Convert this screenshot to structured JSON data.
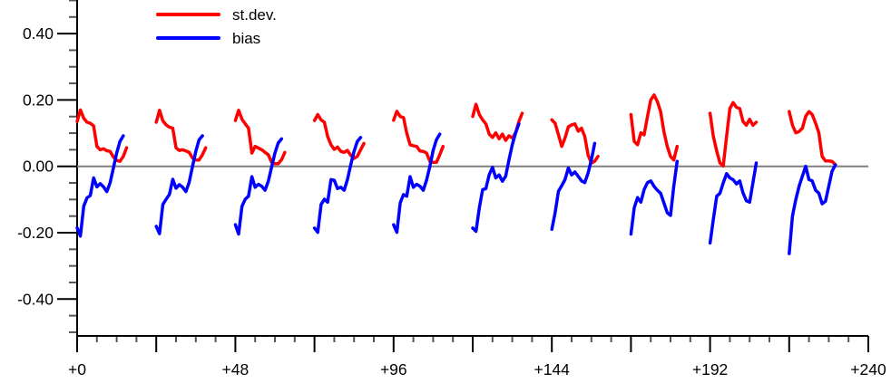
{
  "chart_data": {
    "type": "line",
    "title": "",
    "x_axis": {
      "min": 0,
      "max": 240,
      "minor_tick_step": 6,
      "major_tick_step": 24,
      "tick_labels": [
        {
          "value": 0,
          "text": "+0"
        },
        {
          "value": 48,
          "text": "+48"
        },
        {
          "value": 96,
          "text": "+96"
        },
        {
          "value": 144,
          "text": "+144"
        },
        {
          "value": 192,
          "text": "+192"
        },
        {
          "value": 240,
          "text": "+240"
        }
      ]
    },
    "y_axis": {
      "min": -0.51,
      "max": 0.5,
      "minor_tick_step": 0.05,
      "major_tick_step": 0.2,
      "tick_labels": [
        {
          "value": 0.4,
          "text": "0.40"
        },
        {
          "value": 0.2,
          "text": "0.20"
        },
        {
          "value": 0.0,
          "text": "0.00"
        },
        {
          "value": -0.2,
          "text": "-0.20"
        },
        {
          "value": -0.4,
          "text": "-0.40"
        }
      ]
    },
    "zero_line": {
      "value": 0.0,
      "color": "#7f7f7f"
    },
    "legend": [
      {
        "label": "st.dev.",
        "color": "#ff0000"
      },
      {
        "label": "bias",
        "color": "#0000ff"
      }
    ],
    "series": [
      {
        "name": "st.dev.",
        "color": "#ff0000",
        "segments": [
          {
            "start": 0,
            "step": 1,
            "values": [
              0.135,
              0.17,
              0.145,
              0.133,
              0.13,
              0.122,
              0.06,
              0.05,
              0.053,
              0.047,
              0.045,
              0.028,
              0.018,
              0.015,
              0.03,
              0.056
            ]
          },
          {
            "start": 24,
            "step": 1,
            "values": [
              0.133,
              0.169,
              0.137,
              0.125,
              0.118,
              0.115,
              0.056,
              0.048,
              0.05,
              0.046,
              0.042,
              0.025,
              0.019,
              0.019,
              0.035,
              0.056
            ]
          },
          {
            "start": 48,
            "step": 1,
            "values": [
              0.138,
              0.169,
              0.142,
              0.128,
              0.115,
              0.04,
              0.06,
              0.055,
              0.05,
              0.042,
              0.035,
              0.012,
              0.008,
              0.008,
              0.02,
              0.042
            ]
          },
          {
            "start": 72,
            "step": 1,
            "values": [
              0.138,
              0.156,
              0.14,
              0.133,
              0.09,
              0.065,
              0.051,
              0.058,
              0.045,
              0.042,
              0.048,
              0.033,
              0.024,
              0.03,
              0.05,
              0.069
            ]
          },
          {
            "start": 96,
            "step": 1,
            "values": [
              0.139,
              0.166,
              0.15,
              0.147,
              0.1,
              0.065,
              0.062,
              0.06,
              0.046,
              0.045,
              0.04,
              0.015,
              0.012,
              0.012,
              0.035,
              0.06
            ]
          },
          {
            "start": 120,
            "step": 1,
            "values": [
              0.15,
              0.187,
              0.156,
              0.14,
              0.128,
              0.097,
              0.087,
              0.101,
              0.083,
              0.097,
              0.078,
              0.092,
              0.085,
              0.101,
              0.135,
              0.16
            ]
          },
          {
            "start": 144,
            "step": 1,
            "values": [
              0.14,
              0.13,
              0.095,
              0.06,
              0.085,
              0.119,
              0.125,
              0.128,
              0.106,
              0.115,
              0.09,
              0.033,
              0.01,
              0.015,
              0.03
            ]
          },
          {
            "start": 168,
            "step": 1,
            "values": [
              0.156,
              0.075,
              0.065,
              0.101,
              0.095,
              0.15,
              0.2,
              0.215,
              0.195,
              0.165,
              0.105,
              0.06,
              0.03,
              0.019,
              0.06
            ]
          },
          {
            "start": 192,
            "step": 1,
            "values": [
              0.16,
              0.09,
              0.046,
              0.01,
              0.001,
              0.09,
              0.174,
              0.192,
              0.178,
              0.174,
              0.135,
              0.124,
              0.142,
              0.124,
              0.133
            ]
          },
          {
            "start": 216,
            "step": 1,
            "values": [
              0.165,
              0.124,
              0.101,
              0.105,
              0.115,
              0.151,
              0.165,
              0.156,
              0.13,
              0.101,
              0.03,
              0.016,
              0.016,
              0.015,
              0.005
            ]
          }
        ]
      },
      {
        "name": "bias",
        "color": "#0000ff",
        "segments": [
          {
            "start": 0,
            "step": 1,
            "values": [
              -0.185,
              -0.21,
              -0.12,
              -0.095,
              -0.088,
              -0.035,
              -0.062,
              -0.052,
              -0.062,
              -0.076,
              -0.05,
              -0.005,
              0.04,
              0.075,
              0.092
            ]
          },
          {
            "start": 24,
            "step": 1,
            "values": [
              -0.181,
              -0.203,
              -0.115,
              -0.099,
              -0.085,
              -0.039,
              -0.066,
              -0.055,
              -0.063,
              -0.076,
              -0.048,
              0.0,
              0.045,
              0.08,
              0.092
            ]
          },
          {
            "start": 48,
            "step": 1,
            "values": [
              -0.176,
              -0.204,
              -0.12,
              -0.099,
              -0.09,
              -0.031,
              -0.063,
              -0.054,
              -0.06,
              -0.072,
              -0.045,
              -0.002,
              0.04,
              0.07,
              0.083
            ]
          },
          {
            "start": 72,
            "step": 1,
            "values": [
              -0.186,
              -0.199,
              -0.115,
              -0.099,
              -0.108,
              -0.04,
              -0.042,
              -0.067,
              -0.063,
              -0.072,
              -0.04,
              0.005,
              0.045,
              0.075,
              0.087
            ]
          },
          {
            "start": 96,
            "step": 1,
            "values": [
              -0.176,
              -0.199,
              -0.11,
              -0.085,
              -0.09,
              -0.031,
              -0.063,
              -0.054,
              -0.06,
              -0.072,
              -0.042,
              0.0,
              0.048,
              0.08,
              0.097
            ]
          },
          {
            "start": 120,
            "step": 1,
            "values": [
              -0.186,
              -0.196,
              -0.125,
              -0.07,
              -0.067,
              -0.025,
              -0.003,
              -0.035,
              -0.026,
              -0.045,
              -0.03,
              0.02,
              0.065,
              0.1,
              0.128
            ]
          },
          {
            "start": 144,
            "step": 1,
            "values": [
              -0.19,
              -0.14,
              -0.075,
              -0.058,
              -0.04,
              -0.005,
              -0.026,
              -0.017,
              -0.03,
              -0.044,
              -0.049,
              -0.02,
              0.02,
              0.069
            ]
          },
          {
            "start": 168,
            "step": 1,
            "values": [
              -0.204,
              -0.125,
              -0.094,
              -0.108,
              -0.07,
              -0.049,
              -0.044,
              -0.06,
              -0.072,
              -0.081,
              -0.11,
              -0.14,
              -0.148,
              -0.06,
              0.015
            ]
          },
          {
            "start": 192,
            "step": 1,
            "values": [
              -0.231,
              -0.16,
              -0.09,
              -0.081,
              -0.05,
              -0.022,
              -0.035,
              -0.04,
              -0.053,
              -0.044,
              -0.08,
              -0.104,
              -0.108,
              -0.05,
              0.01
            ]
          },
          {
            "start": 216,
            "step": 1,
            "values": [
              -0.263,
              -0.15,
              -0.1,
              -0.06,
              -0.03,
              0.0,
              -0.04,
              -0.044,
              -0.072,
              -0.081,
              -0.113,
              -0.105,
              -0.06,
              -0.015,
              0.004
            ]
          }
        ]
      }
    ]
  }
}
